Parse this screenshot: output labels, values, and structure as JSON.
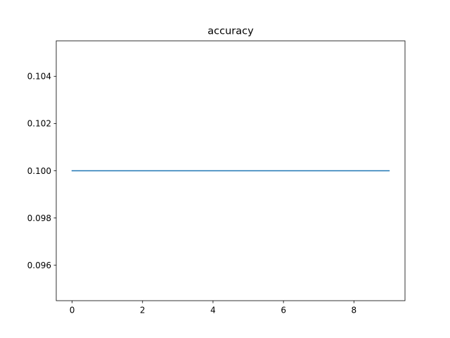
{
  "chart_data": {
    "type": "line",
    "title": "accuracy",
    "xlabel": "",
    "ylabel": "",
    "x": [
      0,
      1,
      2,
      3,
      4,
      5,
      6,
      7,
      8,
      9
    ],
    "series": [
      {
        "values": [
          0.1,
          0.1,
          0.1,
          0.1,
          0.1,
          0.1,
          0.1,
          0.1,
          0.1,
          0.1
        ],
        "color": "#1f77b4"
      }
    ],
    "xlim": [
      -0.45,
      9.45
    ],
    "ylim": [
      0.0945,
      0.1055
    ],
    "xticks": [
      0,
      2,
      4,
      6,
      8
    ],
    "xtick_labels": [
      "0",
      "2",
      "4",
      "6",
      "8"
    ],
    "yticks": [
      0.096,
      0.098,
      0.1,
      0.102,
      0.104
    ],
    "ytick_labels": [
      "0.096",
      "0.098",
      "0.100",
      "0.102",
      "0.104"
    ],
    "grid": false,
    "legend": false
  }
}
